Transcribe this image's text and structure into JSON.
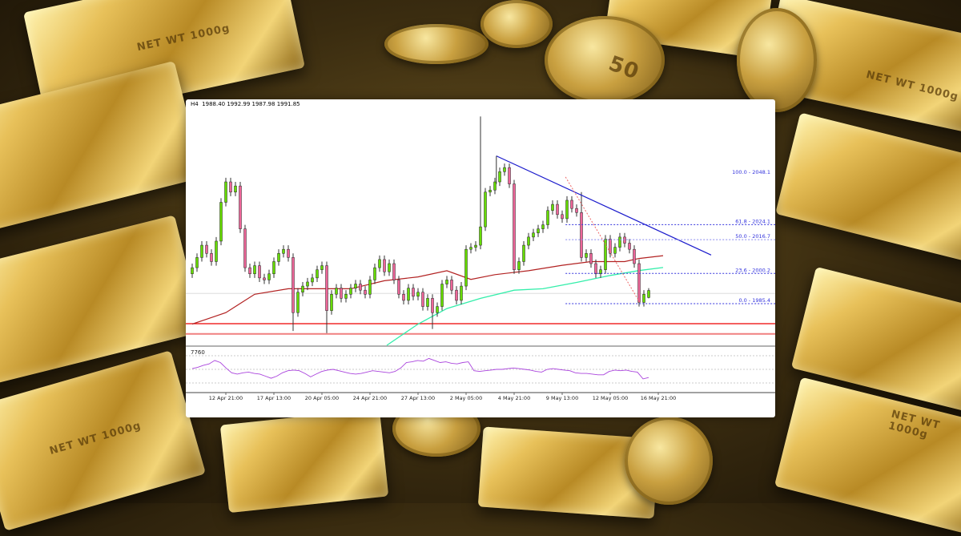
{
  "background": {
    "bar_stamp": "NET WT 1000g",
    "coin_value": "50"
  },
  "header": {
    "timeframe": "H4",
    "ohlc": "1988.40 1992.99 1987.98 1991.85"
  },
  "colors": {
    "bull": "#66dd00",
    "bear": "#ee6699",
    "wick": "#333333",
    "ma_red": "#b22222",
    "ma_teal": "#33eeaa",
    "trendline": "#1a1acc",
    "fib": "#3333dd",
    "support": "#ee0000",
    "rsi": "#aa44dd"
  },
  "chart_data": {
    "type": "candlestick",
    "title": "",
    "xlabel": "",
    "ylabel": "",
    "ylim": [
      1958,
      2082
    ],
    "close": [
      2003,
      2008,
      2014,
      2010,
      2006,
      2016,
      2035,
      2045,
      2040,
      2043,
      2022,
      2003,
      2000,
      2004,
      1998,
      1997,
      2000,
      2006,
      2010,
      2012,
      2008,
      1981,
      1991,
      1994,
      1996,
      1998,
      2002,
      2004,
      1982,
      1990,
      1993,
      1988,
      1990,
      1993,
      1995,
      1992,
      1990,
      1997,
      2003,
      2007,
      2001,
      2005,
      1997,
      1990,
      1987,
      1993,
      1989,
      1991,
      1984,
      1988,
      1981,
      1984,
      1995,
      1997,
      1992,
      1987,
      1994,
      2012,
      2013,
      2014,
      2023,
      2040,
      2041,
      2045,
      2050,
      2052,
      2044,
      2002,
      2006,
      2014,
      2018,
      2020,
      2022,
      2024,
      2031,
      2034,
      2029,
      2027,
      2036,
      2032,
      2030,
      2008,
      2010,
      2005,
      2000,
      2002,
      2017,
      2010,
      2013,
      2018,
      2015,
      2012,
      2005,
      1986,
      1990,
      1991.85
    ],
    "first_open": 2000,
    "last_candle": {
      "open": 1988.4,
      "high": 1992.99,
      "low": 1987.98,
      "close": 1991.85
    },
    "extremes": [
      {
        "index": 60,
        "high": 2077
      },
      {
        "index": 21,
        "low": 1972
      },
      {
        "index": 28,
        "low": 1971
      },
      {
        "index": 50,
        "low": 1973
      },
      {
        "index": 81,
        "high": 2040
      },
      {
        "index": 93,
        "low": 1984
      }
    ],
    "x_ticks": [
      {
        "index": 7,
        "label": "12 Apr 21:00"
      },
      {
        "index": 17,
        "label": "17 Apr 13:00"
      },
      {
        "index": 27,
        "label": "20 Apr 05:00"
      },
      {
        "index": 37,
        "label": "24 Apr 21:00"
      },
      {
        "index": 47,
        "label": "27 Apr 13:00"
      },
      {
        "index": 57,
        "label": "2 May 05:00"
      },
      {
        "index": 67,
        "label": "4 May 21:00"
      },
      {
        "index": 77,
        "label": "9 May 13:00"
      },
      {
        "index": 87,
        "label": "12 May 05:00"
      },
      {
        "index": 97,
        "label": "16 May 21:00"
      }
    ],
    "ma_red": [
      [
        0,
        1975.4
      ],
      [
        7,
        1981
      ],
      [
        13,
        1990
      ],
      [
        20,
        1992.7
      ],
      [
        27,
        1992.7
      ],
      [
        33,
        1992.7
      ],
      [
        40,
        1996.6
      ],
      [
        47,
        1998.5
      ],
      [
        53,
        2001.5
      ],
      [
        58,
        1997.3
      ],
      [
        63,
        1999.6
      ],
      [
        70,
        2001.5
      ],
      [
        77,
        2004.2
      ],
      [
        83,
        2006
      ],
      [
        90,
        2006
      ],
      [
        93,
        2007.5
      ],
      [
        98,
        2008.9
      ]
    ],
    "ma_teal": [
      [
        40.5,
        1965
      ],
      [
        47,
        1975.4
      ],
      [
        53,
        1983
      ],
      [
        60,
        1988
      ],
      [
        67,
        1992
      ],
      [
        73,
        1992.7
      ],
      [
        80,
        1995.8
      ],
      [
        87,
        1999.2
      ],
      [
        93,
        2001.6
      ],
      [
        98,
        2003.1
      ]
    ],
    "trendline": [
      [
        63.3,
        2057.7
      ],
      [
        108,
        2009.2
      ]
    ],
    "fib_diagonal": [
      [
        77.7,
        2047.4
      ],
      [
        93.3,
        1985.4
      ]
    ],
    "fibonacci": [
      {
        "label": "100.0 - 2048.1",
        "price": 2048.1,
        "drawn": false
      },
      {
        "label": "61.8 - 2024.1",
        "price": 2024.1,
        "drawn": true
      },
      {
        "label": "50.0 - 2016.7",
        "price": 2016.7,
        "drawn": true,
        "light": true
      },
      {
        "label": "23.6 - 2000.2",
        "price": 2000.2,
        "drawn": true
      },
      {
        "label": "0.0 - 1985.4",
        "price": 1985.4,
        "drawn": true
      }
    ],
    "support_lines": [
      1975.6,
      1970.6
    ],
    "reference_line": 1990.4,
    "rsi": {
      "label": "7760",
      "levels": [
        70,
        50,
        30
      ],
      "values": [
        51,
        53,
        56,
        58,
        63,
        60,
        52,
        45,
        43,
        45,
        46,
        44,
        43,
        40,
        37,
        40,
        45,
        48,
        49,
        48,
        44,
        39,
        43,
        47,
        49,
        50,
        48,
        46,
        44,
        43,
        44,
        46,
        48,
        47,
        46,
        45,
        47,
        52,
        60,
        61,
        63,
        62,
        66,
        63,
        60,
        61,
        59,
        58,
        60,
        61,
        48,
        47,
        48,
        49,
        50,
        50,
        51,
        52,
        51,
        50,
        49,
        47,
        46,
        50,
        51,
        50,
        49,
        48,
        45,
        44,
        44,
        43,
        42,
        42,
        47,
        49,
        48,
        49,
        47,
        46,
        36,
        38
      ]
    }
  }
}
